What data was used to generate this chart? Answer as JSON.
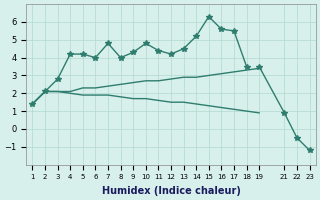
{
  "xlabel": "Humidex (Indice chaleur)",
  "x": [
    1,
    2,
    3,
    4,
    5,
    6,
    7,
    8,
    9,
    10,
    11,
    12,
    13,
    14,
    15,
    16,
    17,
    18,
    19,
    21,
    22,
    23
  ],
  "line1": [
    1.4,
    2.1,
    2.8,
    4.2,
    4.2,
    4.0,
    4.8,
    4.0,
    4.3,
    4.8,
    4.4,
    4.2,
    4.5,
    5.2,
    6.3,
    5.6,
    5.5,
    3.5,
    null,
    null,
    null,
    null
  ],
  "line2": [
    null,
    null,
    null,
    null,
    null,
    null,
    null,
    null,
    null,
    null,
    null,
    null,
    null,
    null,
    null,
    null,
    null,
    3.5,
    null,
    0.9,
    -0.5,
    -1.2
  ],
  "line3": [
    1.4,
    2.1,
    2.1,
    2.1,
    2.3,
    2.3,
    2.4,
    2.5,
    2.6,
    2.7,
    2.7,
    2.8,
    2.9,
    2.9,
    3.0,
    3.1,
    3.2,
    3.3,
    3.4,
    null,
    null,
    null
  ],
  "line4": [
    1.4,
    2.1,
    2.1,
    2.0,
    1.9,
    1.9,
    1.9,
    1.8,
    1.7,
    1.7,
    1.6,
    1.5,
    1.5,
    1.4,
    1.3,
    1.2,
    1.1,
    1.0,
    0.9,
    null,
    null,
    null
  ],
  "line5": [
    null,
    null,
    null,
    null,
    null,
    null,
    null,
    null,
    null,
    null,
    null,
    null,
    null,
    null,
    null,
    null,
    null,
    3.5,
    3.0,
    null,
    null,
    null
  ],
  "color": "#2e7d6e",
  "bg_color": "#d8f0ec",
  "grid_color": "#b0d8d0",
  "ylim": [
    -2,
    7
  ],
  "yticks": [
    -1,
    0,
    1,
    2,
    3,
    4,
    5,
    6
  ],
  "figsize": [
    3.2,
    2.0
  ],
  "dpi": 100
}
